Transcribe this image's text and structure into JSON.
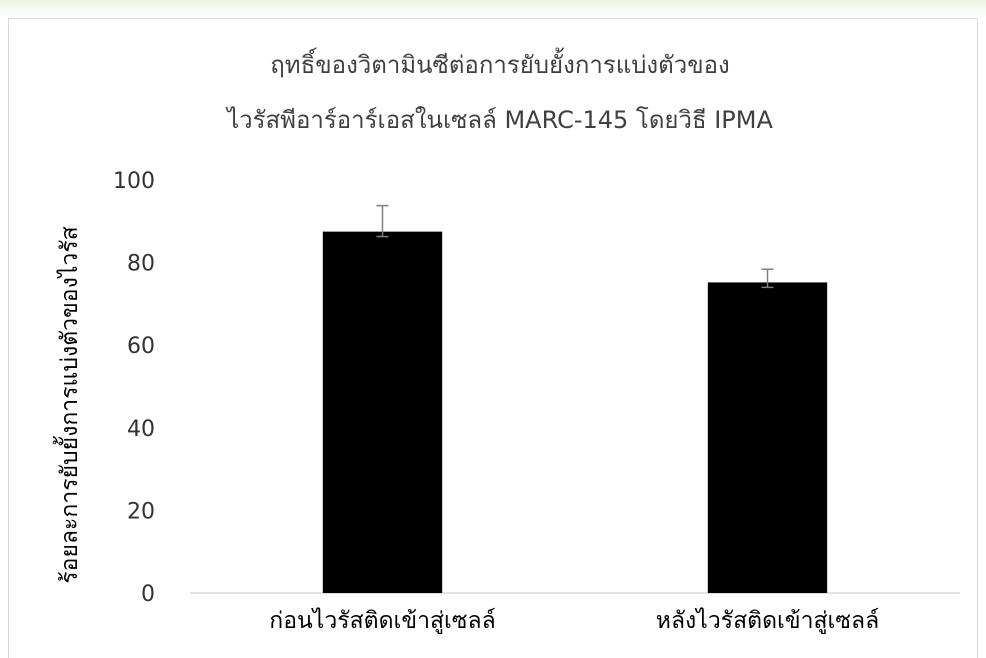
{
  "chart_data": {
    "type": "bar",
    "title_lines": [
      "ฤทธิ์ของวิตามินซีต่อการยับยั้งการแบ่งตัวของ",
      "ไวรัสพีอาร์อาร์เอสในเซลล์ MARC-145 โดยวิธี IPMA"
    ],
    "xlabel": "",
    "ylabel": "ร้อยละการยับยั้งการแบ่งตัวของไวรัส",
    "categories": [
      "ก่อนไวรัสติดเข้าสู่เซลล์",
      "หลังไวรัสติดเข้าสู่เซลล์"
    ],
    "values": [
      87.5,
      75.2
    ],
    "error_low": [
      1.2,
      1.2
    ],
    "error_high": [
      6.3,
      3.2
    ],
    "ylim": [
      0,
      100
    ],
    "yticks": [
      0,
      20,
      40,
      60,
      80,
      100
    ],
    "grid": false,
    "legend": "none",
    "bar_color": "#000000",
    "error_bar_color": "#7f7f7f"
  }
}
